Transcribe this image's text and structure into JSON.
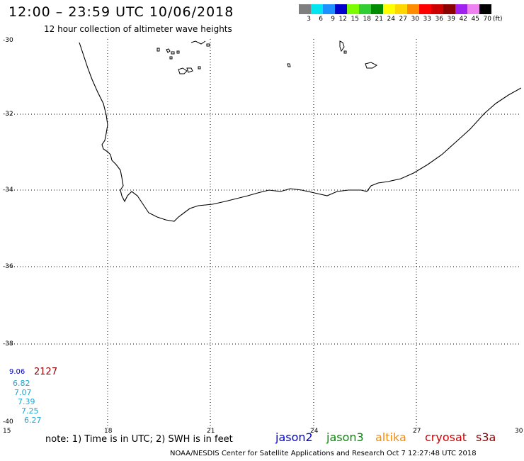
{
  "header": {
    "title": "12:00 – 23:59 UTC 10/06/2018",
    "subtitle": "12 hour collection of altimeter wave heights"
  },
  "colorbar": {
    "labels": [
      "3",
      "6",
      "9",
      "12",
      "15",
      "18",
      "21",
      "24",
      "27",
      "30",
      "33",
      "36",
      "39",
      "42",
      "45",
      "70"
    ],
    "unit": "(ft)",
    "colors": [
      "#7f7f7f",
      "#00e5ee",
      "#1e90ff",
      "#0000cd",
      "#7cfc00",
      "#32cd32",
      "#008b00",
      "#ffff00",
      "#ffd700",
      "#ff8c00",
      "#ff0000",
      "#cd0000",
      "#8b0000",
      "#a020f0",
      "#ee82ee",
      "#000000"
    ]
  },
  "axes": {
    "lat_labels": [
      "-30",
      "-32",
      "-34",
      "-36",
      "-38",
      "-40"
    ],
    "lon_labels": [
      "15",
      "18",
      "21",
      "24",
      "27",
      "30"
    ]
  },
  "observations": {
    "first_value": "9.06",
    "count_label": "2127",
    "values": [
      "6.82",
      "7.07",
      "7.39",
      "7.25",
      "6.27"
    ]
  },
  "footer": {
    "note": "note:  1) Time is in UTC;  2) SWH is in feet",
    "satellites": [
      {
        "label": "jason2",
        "color": "#0000cd"
      },
      {
        "label": "jason3",
        "color": "#008b00"
      },
      {
        "label": "altika",
        "color": "#ff8c00"
      },
      {
        "label": "cryosat",
        "color": "#cc0000"
      },
      {
        "label": "s3a",
        "color": "#8b0000"
      }
    ],
    "credit": "NOAA/NESDIS Center for Satellite Applications and Research    Oct  7 12:27:48 UTC 2018"
  }
}
